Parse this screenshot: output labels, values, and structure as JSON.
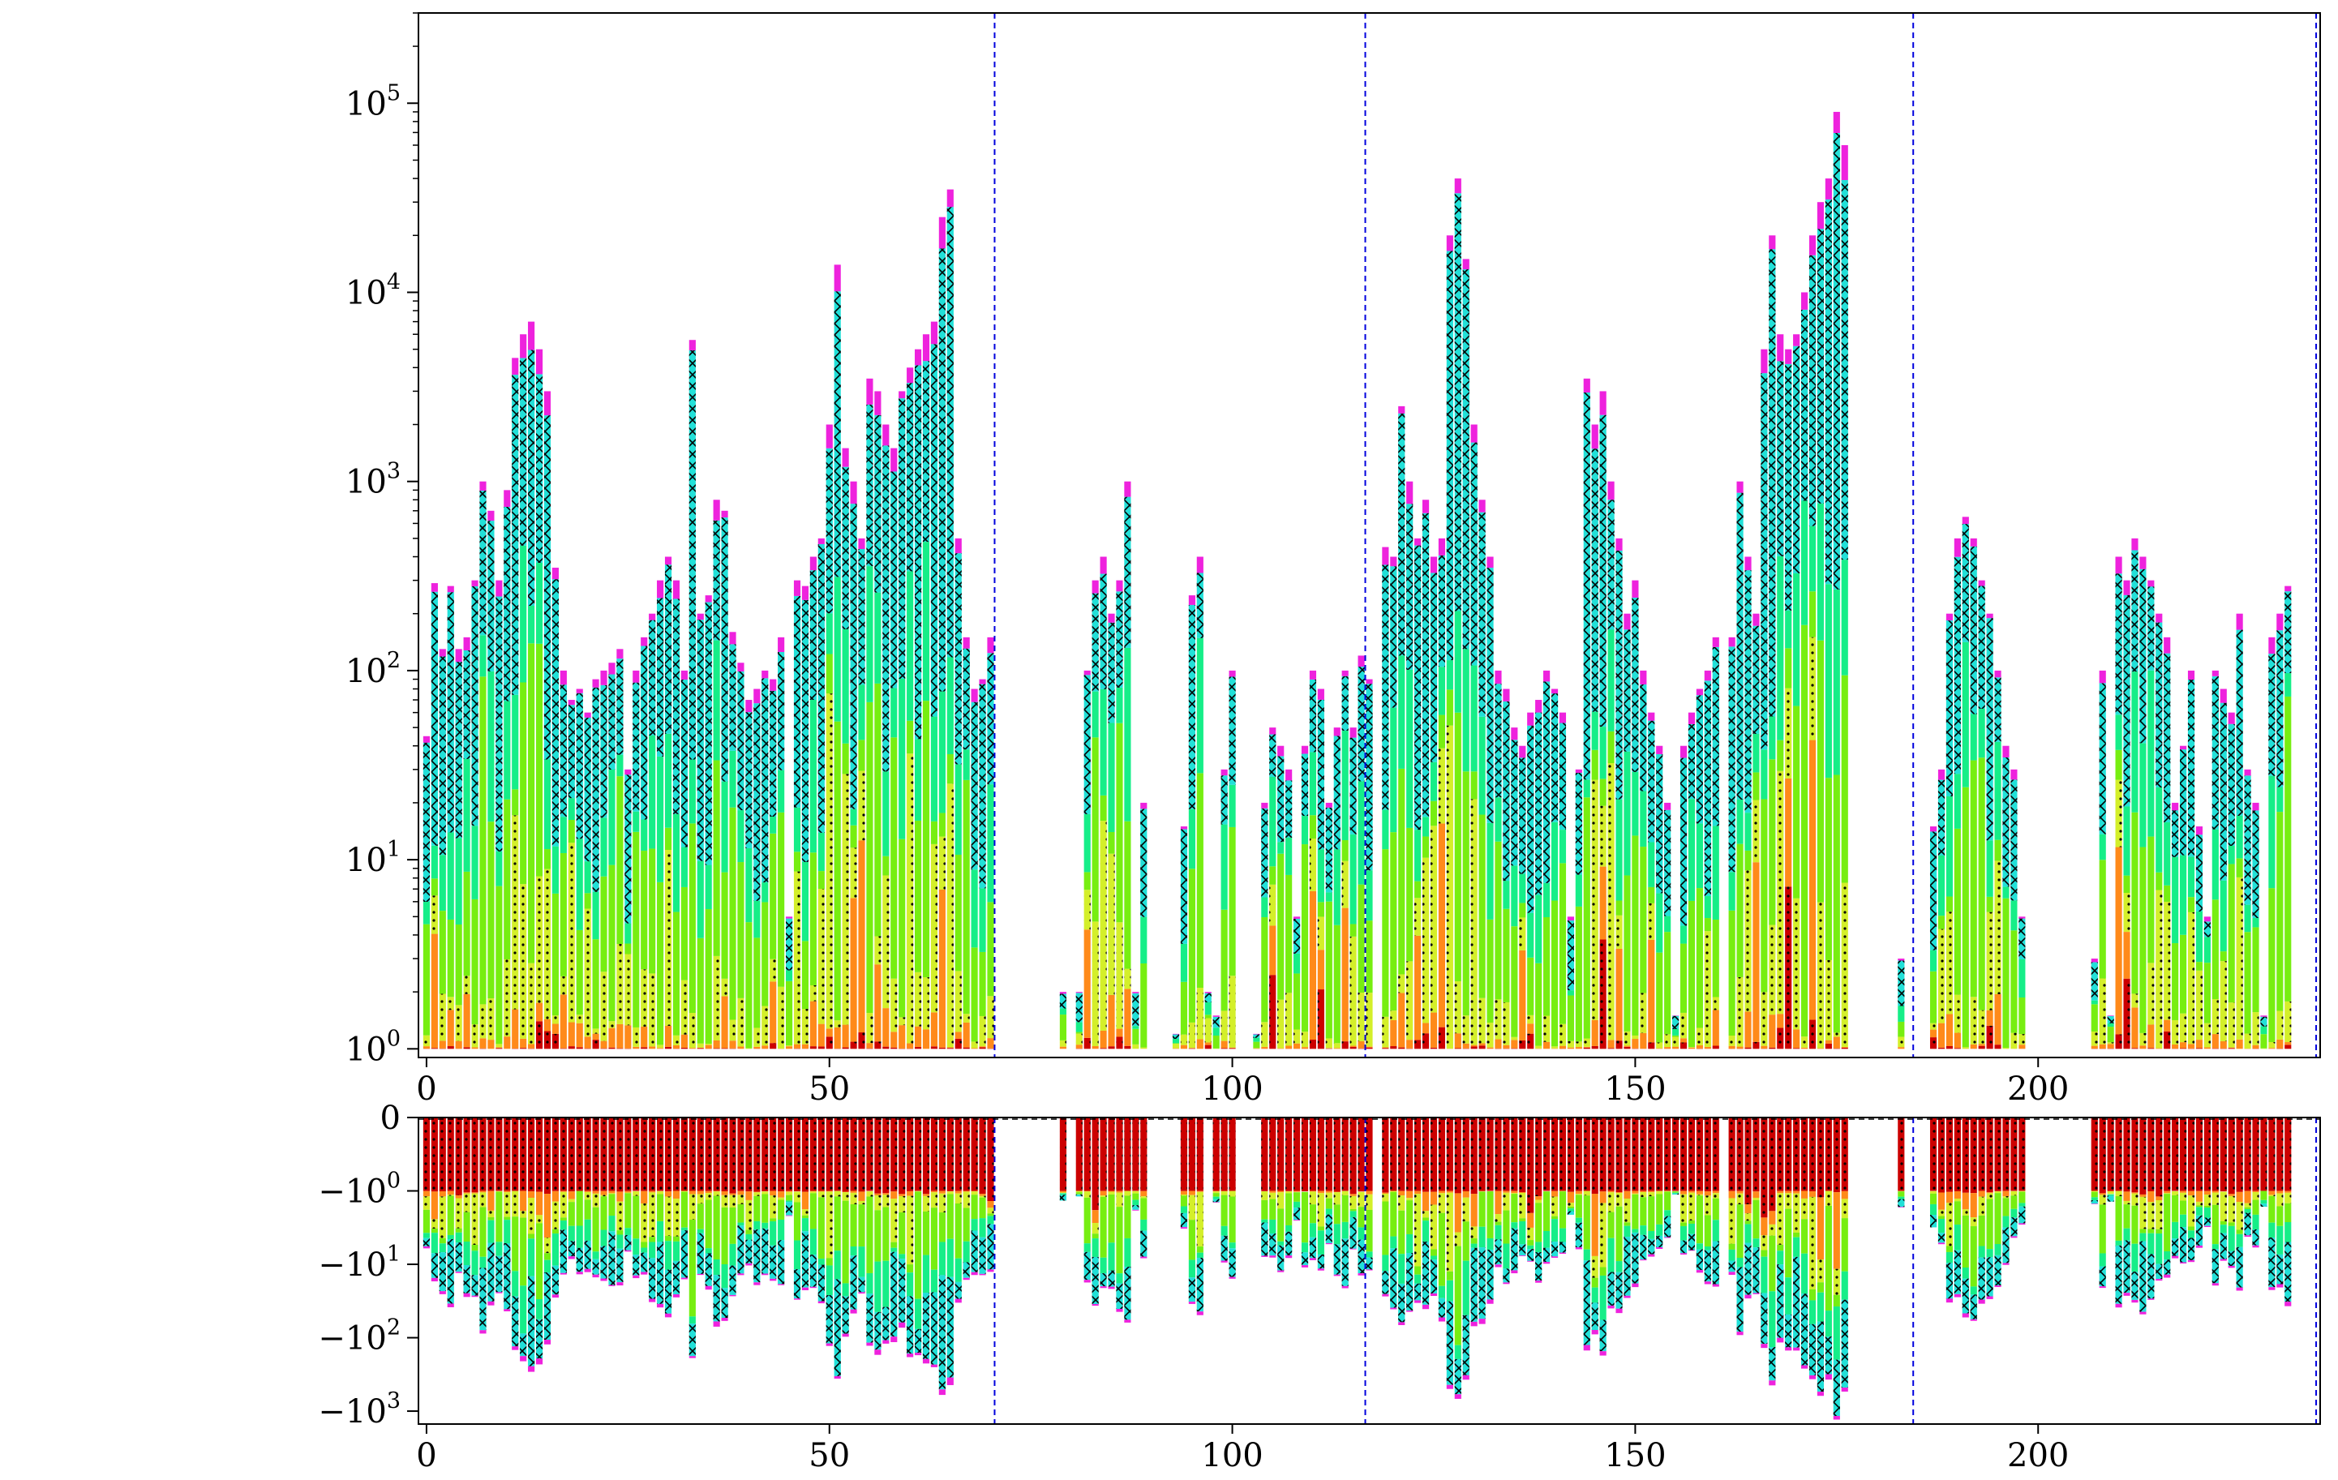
{
  "chart_data": [
    {
      "type": "bar",
      "panel": "top",
      "yscale": "log",
      "xlim": [
        -1,
        235
      ],
      "ylim": [
        0.9,
        300000
      ],
      "grid": false,
      "xticks": [
        "0",
        "50",
        "100",
        "150",
        "200"
      ],
      "xtick_values": [
        0,
        50,
        100,
        150,
        200
      ],
      "yticks": [
        {
          "base": "10",
          "exp": "0",
          "value": 1
        },
        {
          "base": "10",
          "exp": "1",
          "value": 10
        },
        {
          "base": "10",
          "exp": "2",
          "value": 100
        },
        {
          "base": "10",
          "exp": "3",
          "value": 1000
        },
        {
          "base": "10",
          "exp": "4",
          "value": 10000
        },
        {
          "base": "10",
          "exp": "5",
          "value": 100000
        }
      ],
      "vlines": [
        70.5,
        116.5,
        184.5,
        234.5
      ],
      "totals": [
        45,
        290,
        130,
        280,
        130,
        150,
        300,
        1000,
        700,
        300,
        900,
        4500,
        6000,
        7000,
        5000,
        3000,
        350,
        100,
        70,
        80,
        60,
        90,
        100,
        110,
        130,
        30,
        100,
        150,
        200,
        300,
        400,
        300,
        100,
        5600,
        200,
        250,
        800,
        700,
        160,
        110,
        70,
        80,
        100,
        90,
        150,
        5,
        300,
        280,
        400,
        500,
        2000,
        14000,
        1500,
        1000,
        500,
        3500,
        3000,
        2000,
        1500,
        3000,
        4000,
        5000,
        6000,
        7000,
        25000,
        35000,
        500,
        150,
        80,
        90,
        150,
        0,
        0,
        0,
        0,
        0,
        0,
        0,
        1,
        2,
        0,
        2,
        100,
        300,
        400,
        200,
        300,
        1000,
        2,
        20,
        0,
        0,
        0,
        1.2,
        15,
        250,
        400,
        2,
        1.5,
        30,
        100,
        0,
        0,
        1.2,
        20,
        50,
        40,
        30,
        5,
        40,
        100,
        80,
        20,
        50,
        100,
        50,
        120,
        90,
        0,
        450,
        400,
        2500,
        1000,
        500,
        800,
        400,
        500,
        20000,
        40000,
        15000,
        2000,
        800,
        400,
        100,
        80,
        50,
        40,
        60,
        70,
        100,
        80,
        60,
        5,
        30,
        3500,
        2000,
        3000,
        1000,
        500,
        200,
        300,
        100,
        60,
        40,
        20,
        1.5,
        40,
        60,
        80,
        100,
        150,
        0,
        150,
        1000,
        400,
        200,
        5000,
        20000,
        6000,
        5000,
        6000,
        10000,
        20000,
        30000,
        40000,
        90000,
        60000,
        0,
        0,
        0,
        0,
        0,
        0,
        3,
        0,
        0,
        0,
        15,
        30,
        200,
        500,
        650,
        500,
        300,
        200,
        100,
        40,
        30,
        5,
        0,
        0,
        0,
        0,
        0,
        0,
        0,
        0,
        3,
        100,
        1.5,
        400,
        300,
        500,
        400,
        300,
        200,
        150,
        20,
        40,
        100,
        15,
        5,
        100,
        80,
        60,
        200,
        30,
        20,
        1.5,
        150,
        200,
        280
      ],
      "series": [
        {
          "name": "",
          "color": "#cc0000",
          "hatch": "dots"
        },
        {
          "name": "",
          "color": "#ff8a1a",
          "hatch": "none"
        },
        {
          "name": "",
          "color": "#d4ef2a",
          "hatch": "dots"
        },
        {
          "name": "",
          "color": "#77ee11",
          "hatch": "none"
        },
        {
          "name": "",
          "color": "#16ee88",
          "hatch": "none"
        },
        {
          "name": "",
          "color": "#22e0d8",
          "hatch": "cross"
        },
        {
          "name": "",
          "color": "#ee22dd",
          "hatch": "none"
        }
      ]
    },
    {
      "type": "bar",
      "panel": "bottom",
      "yscale": "symlog",
      "xlim": [
        -1,
        235
      ],
      "ylim": [
        -1500,
        0
      ],
      "grid": false,
      "xticks": [
        "0",
        "50",
        "100",
        "150",
        "200"
      ],
      "xtick_values": [
        0,
        50,
        100,
        150,
        200
      ],
      "yticks": [
        {
          "base": "0",
          "exp": "",
          "value": 0
        },
        {
          "base": "−10",
          "exp": "0",
          "value": -1
        },
        {
          "base": "−10",
          "exp": "1",
          "value": -10
        },
        {
          "base": "−10",
          "exp": "2",
          "value": -100
        },
        {
          "base": "−10",
          "exp": "3",
          "value": -1000
        }
      ],
      "vlines": [
        70.5,
        116.5,
        184.5,
        234.5
      ],
      "zero_line": true
    }
  ]
}
